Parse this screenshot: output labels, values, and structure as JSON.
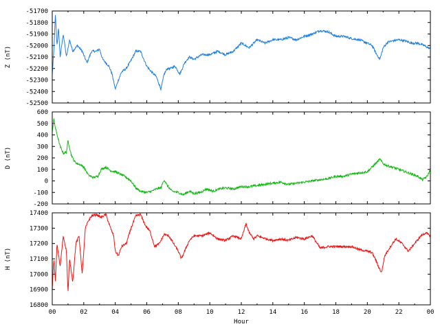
{
  "chart_data": [
    {
      "type": "line",
      "ylabel": "Z (nT)",
      "ylim": [
        -52500,
        -51700
      ],
      "yticks": [
        -51700,
        -51800,
        -51900,
        -52000,
        -52100,
        -52200,
        -52300,
        -52400,
        -52500
      ],
      "xlim": [
        0,
        24
      ],
      "color": "#1e7fe0",
      "series": [
        {
          "x": [
            0,
            0.1,
            0.2,
            0.3,
            0.4,
            0.5,
            0.7,
            0.9,
            1.1,
            1.3,
            1.6,
            1.9,
            2.2,
            2.5,
            2.8,
            3.0,
            3.2,
            3.4,
            3.6,
            3.8,
            4.0,
            4.2,
            4.4,
            4.7,
            5.0,
            5.3,
            5.6,
            6.0,
            6.3,
            6.6,
            6.9,
            7.1,
            7.3,
            7.5,
            7.8,
            8.1,
            8.4,
            8.7,
            9.0,
            9.5,
            10.0,
            10.5,
            11.0,
            11.5,
            12.0,
            12.5,
            13.0,
            13.5,
            14.0,
            14.5,
            15.0,
            15.5,
            16.0,
            16.5,
            17.0,
            17.5,
            18.0,
            18.5,
            19.0,
            19.5,
            20.0,
            20.3,
            20.6,
            20.8,
            21.0,
            21.3,
            21.6,
            22.0,
            22.4,
            22.8,
            23.2,
            23.6,
            24.0
          ],
          "y": [
            -52250,
            -52050,
            -51730,
            -52000,
            -51850,
            -52100,
            -51900,
            -52100,
            -51950,
            -52050,
            -52000,
            -52050,
            -52150,
            -52050,
            -52050,
            -52030,
            -52120,
            -52150,
            -52180,
            -52250,
            -52380,
            -52300,
            -52230,
            -52200,
            -52130,
            -52050,
            -52050,
            -52180,
            -52230,
            -52270,
            -52380,
            -52250,
            -52200,
            -52200,
            -52180,
            -52250,
            -52150,
            -52100,
            -52120,
            -52080,
            -52080,
            -52050,
            -52080,
            -52050,
            -51980,
            -52020,
            -51950,
            -51980,
            -51950,
            -51950,
            -51930,
            -51950,
            -51920,
            -51900,
            -51870,
            -51880,
            -51920,
            -51920,
            -51940,
            -51950,
            -51980,
            -52000,
            -52080,
            -52120,
            -52020,
            -51970,
            -51960,
            -51950,
            -51960,
            -51980,
            -51980,
            -52000,
            -52030
          ]
        }
      ]
    },
    {
      "type": "line",
      "ylabel": "D (nT)",
      "ylim": [
        -200,
        600
      ],
      "yticks": [
        600,
        500,
        400,
        300,
        200,
        100,
        0,
        -100,
        -200
      ],
      "xlim": [
        0,
        24
      ],
      "color": "#11b811",
      "series": [
        {
          "x": [
            0,
            0.1,
            0.2,
            0.35,
            0.5,
            0.7,
            0.9,
            1.0,
            1.2,
            1.4,
            1.6,
            1.8,
            2.0,
            2.3,
            2.6,
            2.9,
            3.1,
            3.4,
            3.7,
            4.0,
            4.3,
            4.6,
            5.0,
            5.3,
            5.6,
            6.0,
            6.3,
            6.6,
            6.9,
            7.1,
            7.3,
            7.6,
            8.0,
            8.3,
            8.7,
            9.0,
            9.4,
            9.8,
            10.2,
            10.6,
            11.0,
            11.5,
            12.0,
            12.5,
            13.0,
            13.5,
            14.0,
            14.5,
            15.0,
            15.5,
            16.0,
            16.5,
            17.0,
            17.5,
            18.0,
            18.5,
            19.0,
            19.5,
            20.0,
            20.3,
            20.6,
            20.8,
            21.0,
            21.3,
            21.6,
            22.0,
            22.4,
            22.8,
            23.2,
            23.5,
            23.8,
            24.0
          ],
          "y": [
            430,
            540,
            460,
            380,
            300,
            240,
            250,
            350,
            230,
            170,
            150,
            140,
            120,
            50,
            30,
            40,
            100,
            120,
            90,
            80,
            60,
            40,
            0,
            -60,
            -90,
            -100,
            -90,
            -70,
            -60,
            10,
            -40,
            -90,
            -100,
            -120,
            -90,
            -110,
            -100,
            -70,
            -90,
            -70,
            -60,
            -70,
            -50,
            -50,
            -40,
            -30,
            -20,
            -10,
            -30,
            -20,
            -10,
            0,
            10,
            20,
            40,
            40,
            60,
            70,
            80,
            120,
            160,
            190,
            150,
            130,
            120,
            100,
            80,
            60,
            40,
            10,
            40,
            100
          ]
        }
      ]
    },
    {
      "type": "line",
      "ylabel": "H (nT)",
      "xlabel": "Hour",
      "ylim": [
        16800,
        17400
      ],
      "yticks": [
        17400,
        17300,
        17200,
        17100,
        17000,
        16900,
        16800
      ],
      "xlim": [
        0,
        24
      ],
      "xticks": [
        "00",
        "02",
        "04",
        "06",
        "08",
        "10",
        "12",
        "14",
        "16",
        "18",
        "20",
        "22",
        "00"
      ],
      "color": "#ee1111",
      "series": [
        {
          "x": [
            0,
            0.1,
            0.2,
            0.3,
            0.5,
            0.7,
            0.9,
            1.0,
            1.1,
            1.3,
            1.5,
            1.7,
            1.9,
            2.1,
            2.3,
            2.5,
            2.8,
            3.1,
            3.4,
            3.7,
            3.9,
            4.0,
            4.2,
            4.4,
            4.7,
            5.0,
            5.3,
            5.6,
            5.9,
            6.2,
            6.5,
            6.8,
            7.1,
            7.4,
            7.7,
            8.0,
            8.2,
            8.4,
            8.7,
            9.0,
            9.5,
            10.0,
            10.5,
            11.0,
            11.5,
            12.0,
            12.3,
            12.5,
            12.8,
            13.0,
            13.3,
            13.6,
            14.0,
            14.5,
            15.0,
            15.5,
            16.0,
            16.5,
            17.0,
            17.5,
            18.0,
            18.5,
            19.0,
            19.5,
            20.0,
            20.3,
            20.5,
            20.7,
            20.9,
            21.1,
            21.4,
            21.8,
            22.2,
            22.6,
            23.0,
            23.4,
            23.7,
            24.0
          ],
          "y": [
            16900,
            17100,
            16950,
            17200,
            17050,
            17250,
            17150,
            16880,
            17100,
            16950,
            17200,
            17250,
            17000,
            17300,
            17350,
            17380,
            17390,
            17370,
            17390,
            17300,
            17250,
            17150,
            17120,
            17180,
            17200,
            17300,
            17380,
            17390,
            17320,
            17280,
            17180,
            17200,
            17260,
            17250,
            17200,
            17150,
            17100,
            17150,
            17220,
            17250,
            17250,
            17270,
            17230,
            17220,
            17250,
            17230,
            17330,
            17270,
            17230,
            17250,
            17240,
            17230,
            17220,
            17230,
            17220,
            17240,
            17230,
            17250,
            17170,
            17180,
            17180,
            17180,
            17180,
            17160,
            17150,
            17140,
            17100,
            17050,
            17010,
            17120,
            17170,
            17230,
            17200,
            17150,
            17200,
            17250,
            17270,
            17250
          ]
        }
      ]
    }
  ]
}
